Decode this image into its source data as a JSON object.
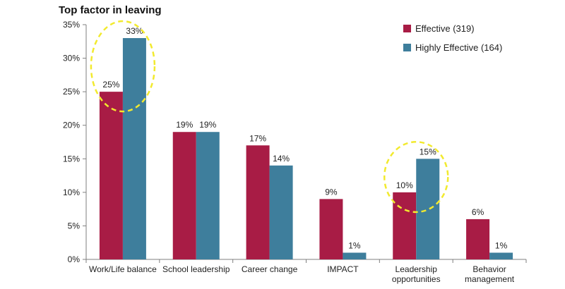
{
  "chart_data": {
    "type": "bar",
    "title": "Top factor in leaving",
    "categories": [
      [
        "Work/Life balance"
      ],
      [
        "School leadership"
      ],
      [
        "Career change"
      ],
      [
        "IMPACT"
      ],
      [
        "Leadership",
        "opportunities"
      ],
      [
        "Behavior",
        "management"
      ]
    ],
    "series": [
      {
        "name": "Effective (319)",
        "values": [
          25,
          19,
          17,
          9,
          10,
          6
        ],
        "labels": [
          "25%",
          "19%",
          "17%",
          "9%",
          "10%",
          "6%"
        ],
        "color": "#A81C45"
      },
      {
        "name": "Highly Effective (164)",
        "values": [
          33,
          19,
          14,
          1,
          15,
          1
        ],
        "labels": [
          "33%",
          "19%",
          "14%",
          "1%",
          "15%",
          "1%"
        ],
        "color": "#3E7E9C"
      }
    ],
    "ylim": [
      0,
      35
    ],
    "yticks": [
      "0%",
      "5%",
      "10%",
      "15%",
      "20%",
      "25%",
      "30%",
      "35%"
    ],
    "ytick_values": [
      0,
      5,
      10,
      15,
      20,
      25,
      30,
      35
    ],
    "grid": false,
    "legend_position": "top-right",
    "highlights": [
      {
        "category_index": 0,
        "color": "#F2EA2E",
        "style": "dashed-ellipse"
      },
      {
        "category_index": 4,
        "color": "#F2EA2E",
        "style": "dashed-ellipse"
      }
    ]
  }
}
